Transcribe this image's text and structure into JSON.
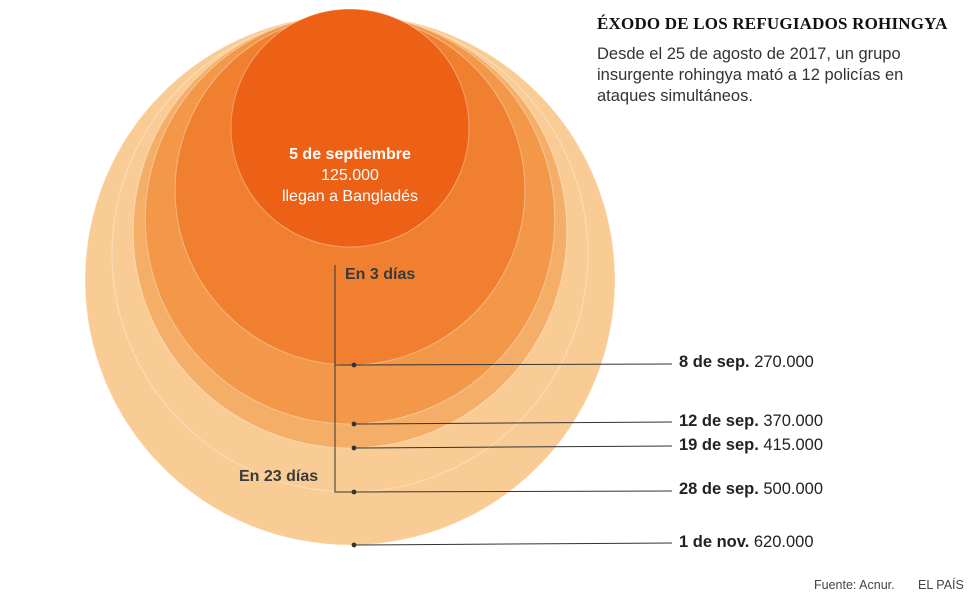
{
  "title": "ÉXODO DE LOS REFUGIADOS ROHINGYA",
  "subtitle": "Desde el 25 de agosto de 2017, un grupo insurgente rohingya mató a 12 policías en ataques simultáneos.",
  "footer": {
    "source": "Fuente: Acnur.",
    "brand": "EL PAÍS"
  },
  "center_label": {
    "date": "5 de septiembre",
    "value": "125.000",
    "text": "llegan a Bangladés"
  },
  "annotations": {
    "three_days": "En 3 días",
    "twenty_three_days": "En 23 días"
  },
  "colors": {
    "c1": "#ec6116",
    "c2": "#f08030",
    "c3": "#f29848",
    "c4": "#f4ae68",
    "c5": "#f9cc95",
    "leader": "#333333"
  },
  "chart_data": {
    "type": "proportional-area-circles",
    "title": "ÉXODO DE LOS REFUGIADOS ROHINGYA",
    "points": [
      {
        "date": "5 de septiembre",
        "label": "",
        "value": 125000,
        "value_label": "125.000"
      },
      {
        "date": "8 de sep.",
        "label": "8 de sep.",
        "value": 270000,
        "value_label": "270.000"
      },
      {
        "date": "12 de sep.",
        "label": "12 de sep.",
        "value": 370000,
        "value_label": "370.000"
      },
      {
        "date": "19 de sep.",
        "label": "19 de sep.",
        "value": 415000,
        "value_label": "415.000"
      },
      {
        "date": "28 de sep.",
        "label": "28 de sep.",
        "value": 500000,
        "value_label": "500.000"
      },
      {
        "date": "1 de nov.",
        "label": "1 de nov.",
        "value": 620000,
        "value_label": "620.000"
      }
    ]
  }
}
